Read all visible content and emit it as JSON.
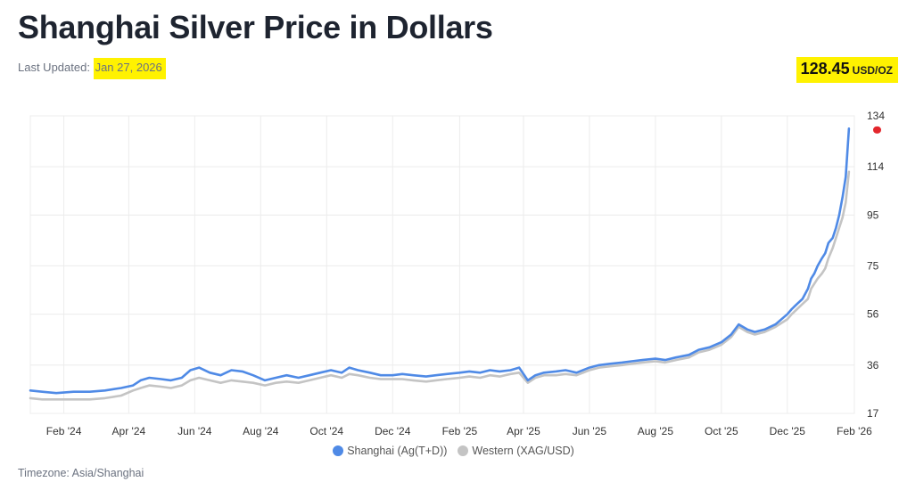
{
  "header": {
    "title": "Shanghai Silver Price in Dollars",
    "last_updated_label": "Last Updated:",
    "last_updated_date": "Jan 27, 2026",
    "price_value": "128.45",
    "price_unit": "USD/OZ"
  },
  "footer": {
    "timezone": "Timezone: Asia/Shanghai"
  },
  "colors": {
    "shanghai": "#4f8ae6",
    "western": "#c4c4c4",
    "highlight": "#fff200",
    "last_price_marker": "#e3262c"
  },
  "chart_data": {
    "type": "line",
    "x_type": "date",
    "x_range": [
      "2024-01-01",
      "2026-02-01"
    ],
    "ylim": [
      17,
      134
    ],
    "yticks": [
      17,
      36,
      56,
      75,
      95,
      114,
      134
    ],
    "xticks": [
      {
        "label": "Feb '24",
        "date": "2024-02-01"
      },
      {
        "label": "Apr '24",
        "date": "2024-04-01"
      },
      {
        "label": "Jun '24",
        "date": "2024-06-01"
      },
      {
        "label": "Aug '24",
        "date": "2024-08-01"
      },
      {
        "label": "Oct '24",
        "date": "2024-10-01"
      },
      {
        "label": "Dec '24",
        "date": "2024-12-01"
      },
      {
        "label": "Feb '25",
        "date": "2025-02-01"
      },
      {
        "label": "Apr '25",
        "date": "2025-04-01"
      },
      {
        "label": "Jun '25",
        "date": "2025-06-01"
      },
      {
        "label": "Aug '25",
        "date": "2025-08-01"
      },
      {
        "label": "Oct '25",
        "date": "2025-10-01"
      },
      {
        "label": "Dec '25",
        "date": "2025-12-01"
      },
      {
        "label": "Feb '26",
        "date": "2026-02-01"
      }
    ],
    "grid": true,
    "legend_position": "bottom-center",
    "last_price": 128.45,
    "series": [
      {
        "name": "Shanghai (Ag(T+D))",
        "color": "#4f8ae6",
        "x": [
          "2024-01-01",
          "2024-01-12",
          "2024-01-25",
          "2024-02-10",
          "2024-02-25",
          "2024-03-10",
          "2024-03-25",
          "2024-04-05",
          "2024-04-12",
          "2024-04-20",
          "2024-05-01",
          "2024-05-10",
          "2024-05-20",
          "2024-05-28",
          "2024-06-05",
          "2024-06-15",
          "2024-06-25",
          "2024-07-05",
          "2024-07-15",
          "2024-07-25",
          "2024-08-05",
          "2024-08-15",
          "2024-08-25",
          "2024-09-05",
          "2024-09-15",
          "2024-09-25",
          "2024-10-05",
          "2024-10-15",
          "2024-10-22",
          "2024-10-30",
          "2024-11-10",
          "2024-11-20",
          "2024-12-01",
          "2024-12-10",
          "2024-12-20",
          "2025-01-01",
          "2025-01-10",
          "2025-01-20",
          "2025-02-01",
          "2025-02-10",
          "2025-02-20",
          "2025-03-01",
          "2025-03-10",
          "2025-03-20",
          "2025-03-28",
          "2025-04-05",
          "2025-04-12",
          "2025-04-20",
          "2025-05-01",
          "2025-05-10",
          "2025-05-20",
          "2025-06-01",
          "2025-06-10",
          "2025-06-20",
          "2025-07-01",
          "2025-07-10",
          "2025-07-20",
          "2025-08-01",
          "2025-08-10",
          "2025-08-20",
          "2025-09-01",
          "2025-09-10",
          "2025-09-20",
          "2025-10-01",
          "2025-10-10",
          "2025-10-17",
          "2025-10-25",
          "2025-11-01",
          "2025-11-10",
          "2025-11-20",
          "2025-12-01",
          "2025-12-05",
          "2025-12-10",
          "2025-12-15",
          "2025-12-20",
          "2025-12-23",
          "2025-12-26",
          "2025-12-29",
          "2026-01-02",
          "2026-01-05",
          "2026-01-08",
          "2026-01-12",
          "2026-01-15",
          "2026-01-18",
          "2026-01-21",
          "2026-01-24",
          "2026-01-27"
        ],
        "y": [
          26,
          25.5,
          25,
          25.5,
          25.5,
          26,
          27,
          28,
          30,
          31,
          30.5,
          30,
          31,
          34,
          35,
          33,
          32,
          34,
          33.5,
          32,
          30,
          31,
          32,
          31,
          32,
          33,
          34,
          33,
          35,
          34,
          33,
          32,
          32,
          32.5,
          32,
          31.5,
          32,
          32.5,
          33,
          33.5,
          33,
          34,
          33.5,
          34,
          35,
          30,
          32,
          33,
          33.5,
          34,
          33,
          35,
          36,
          36.5,
          37,
          37.5,
          38,
          38.5,
          38,
          39,
          40,
          42,
          43,
          45,
          48,
          52,
          50,
          49,
          50,
          52,
          56,
          58,
          60,
          62,
          66,
          70,
          72,
          75,
          78,
          80,
          84,
          86,
          90,
          95,
          102,
          110,
          129
        ]
      },
      {
        "name": "Western (XAG/USD)",
        "color": "#c4c4c4",
        "x": [
          "2024-01-01",
          "2024-01-12",
          "2024-01-25",
          "2024-02-10",
          "2024-02-25",
          "2024-03-10",
          "2024-03-25",
          "2024-04-05",
          "2024-04-12",
          "2024-04-20",
          "2024-05-01",
          "2024-05-10",
          "2024-05-20",
          "2024-05-28",
          "2024-06-05",
          "2024-06-15",
          "2024-06-25",
          "2024-07-05",
          "2024-07-15",
          "2024-07-25",
          "2024-08-05",
          "2024-08-15",
          "2024-08-25",
          "2024-09-05",
          "2024-09-15",
          "2024-09-25",
          "2024-10-05",
          "2024-10-15",
          "2024-10-22",
          "2024-10-30",
          "2024-11-10",
          "2024-11-20",
          "2024-12-01",
          "2024-12-10",
          "2024-12-20",
          "2025-01-01",
          "2025-01-10",
          "2025-01-20",
          "2025-02-01",
          "2025-02-10",
          "2025-02-20",
          "2025-03-01",
          "2025-03-10",
          "2025-03-20",
          "2025-03-28",
          "2025-04-05",
          "2025-04-12",
          "2025-04-20",
          "2025-05-01",
          "2025-05-10",
          "2025-05-20",
          "2025-06-01",
          "2025-06-10",
          "2025-06-20",
          "2025-07-01",
          "2025-07-10",
          "2025-07-20",
          "2025-08-01",
          "2025-08-10",
          "2025-08-20",
          "2025-09-01",
          "2025-09-10",
          "2025-09-20",
          "2025-10-01",
          "2025-10-10",
          "2025-10-17",
          "2025-10-25",
          "2025-11-01",
          "2025-11-10",
          "2025-11-20",
          "2025-12-01",
          "2025-12-05",
          "2025-12-10",
          "2025-12-15",
          "2025-12-20",
          "2025-12-23",
          "2025-12-26",
          "2025-12-29",
          "2026-01-02",
          "2026-01-05",
          "2026-01-08",
          "2026-01-12",
          "2026-01-15",
          "2026-01-18",
          "2026-01-21",
          "2026-01-24",
          "2026-01-27"
        ],
        "y": [
          23,
          22.5,
          22.5,
          22.5,
          22.5,
          23,
          24,
          26,
          27,
          28,
          27.5,
          27,
          28,
          30,
          31,
          30,
          29,
          30,
          29.5,
          29,
          28,
          29,
          29.5,
          29,
          30,
          31,
          32,
          31,
          32.5,
          32,
          31,
          30.5,
          30.5,
          30.5,
          30,
          29.5,
          30,
          30.5,
          31,
          31.5,
          31,
          32,
          31.5,
          32.5,
          33,
          29,
          31,
          32,
          32,
          32.5,
          32,
          34,
          35,
          35.5,
          36,
          36.5,
          37,
          37.5,
          37,
          38,
          39,
          41,
          42,
          44,
          47,
          51,
          49,
          48,
          49,
          51,
          54,
          56,
          58,
          60,
          62,
          66,
          68,
          70,
          72,
          74,
          78,
          82,
          86,
          90,
          94,
          100,
          112
        ]
      }
    ]
  }
}
